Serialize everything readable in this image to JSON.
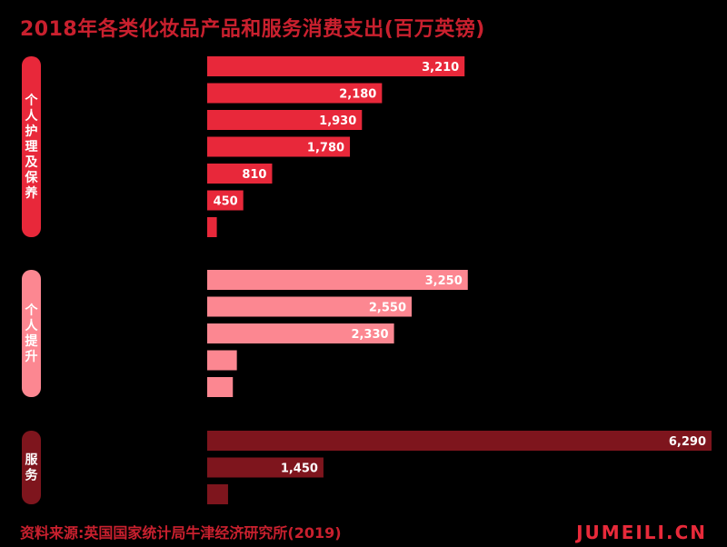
{
  "colors": {
    "background": "#000000",
    "title": "#c9202e",
    "source": "#c9202e",
    "brand": "#e82a3a",
    "label_text": "#ffffff"
  },
  "title": "2018年各类化妆品产品和服务消费支出(百万英镑)",
  "source": "资料来源:英国国家统计局牛津经济研究所(2019)",
  "brand": "JUMEILI.CN",
  "chart_data": {
    "type": "bar",
    "orientation": "horizontal",
    "title": "2018年各类化妆品产品和服务消费支出(百万英镑)",
    "xlim": [
      0,
      6290
    ],
    "grid": false,
    "legend": "none",
    "groups": [
      {
        "name": "个人护理及保养",
        "color": "#e8283a",
        "values": [
          3210,
          2180,
          1930,
          1780,
          810,
          450,
          120
        ],
        "labels": [
          "3,210",
          "2,180",
          "1,930",
          "1,780",
          "810",
          "450",
          ""
        ]
      },
      {
        "name": "个人提升",
        "color": "#fc8791",
        "values": [
          3250,
          2550,
          2330,
          370,
          320
        ],
        "labels": [
          "3,250",
          "2,550",
          "2,330",
          "",
          ""
        ]
      },
      {
        "name": "服务",
        "color": "#7e151d",
        "values": [
          6290,
          1450,
          260
        ],
        "labels": [
          "6,290",
          "1,450",
          ""
        ]
      }
    ]
  }
}
